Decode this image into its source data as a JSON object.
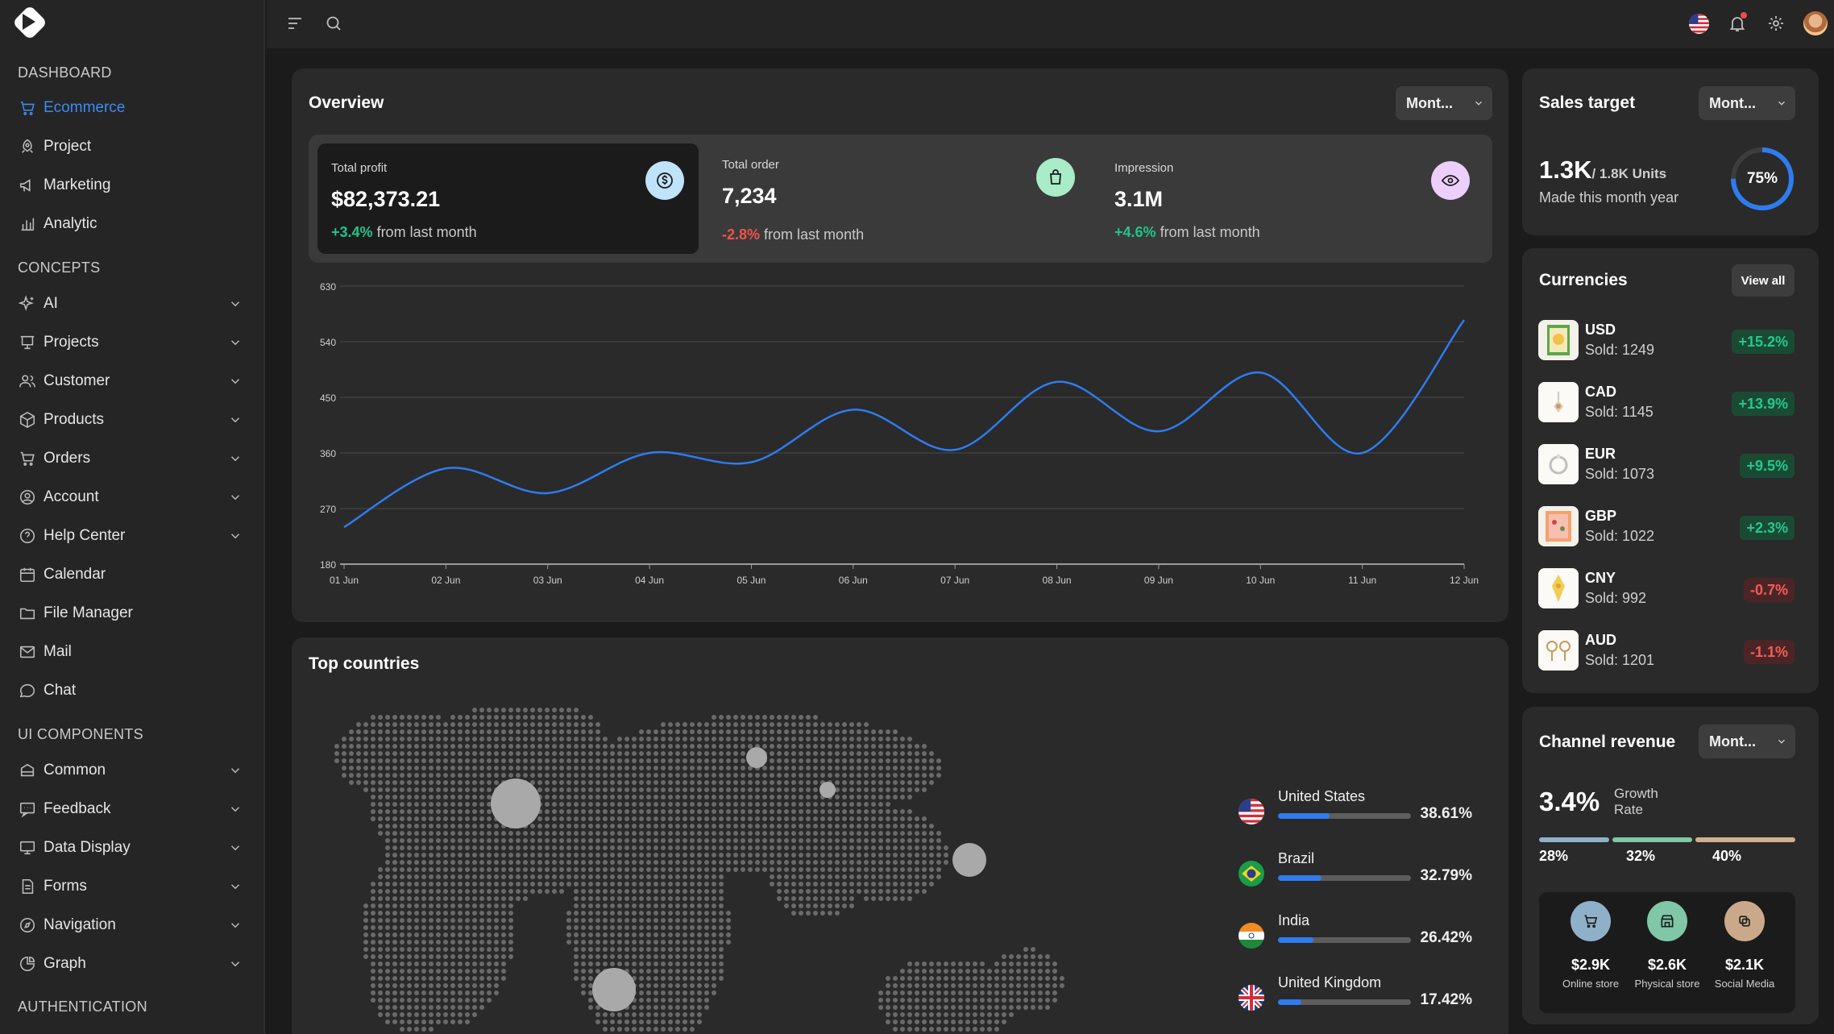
{
  "sidebar": {
    "sections": [
      "DASHBOARD",
      "CONCEPTS",
      "UI COMPONENTS",
      "AUTHENTICATION"
    ],
    "dashboard_items": [
      {
        "label": "Ecommerce",
        "icon": "cart-icon",
        "active": true
      },
      {
        "label": "Project",
        "icon": "rocket-icon"
      },
      {
        "label": "Marketing",
        "icon": "megaphone-icon"
      },
      {
        "label": "Analytic",
        "icon": "bar-chart-icon"
      }
    ],
    "concept_items": [
      {
        "label": "AI",
        "icon": "sparkle-icon"
      },
      {
        "label": "Projects",
        "icon": "presentation-icon"
      },
      {
        "label": "Customer",
        "icon": "users-icon"
      },
      {
        "label": "Products",
        "icon": "box-icon"
      },
      {
        "label": "Orders",
        "icon": "cart-icon"
      },
      {
        "label": "Account",
        "icon": "user-circle-icon"
      },
      {
        "label": "Help Center",
        "icon": "help-icon"
      },
      {
        "label": "Calendar",
        "icon": "calendar-icon"
      },
      {
        "label": "File Manager",
        "icon": "folder-icon"
      },
      {
        "label": "Mail",
        "icon": "mail-icon"
      },
      {
        "label": "Chat",
        "icon": "chat-icon"
      }
    ],
    "component_items": [
      {
        "label": "Common",
        "icon": "layers-icon"
      },
      {
        "label": "Feedback",
        "icon": "message-icon"
      },
      {
        "label": "Data Display",
        "icon": "monitor-icon"
      },
      {
        "label": "Forms",
        "icon": "file-icon"
      },
      {
        "label": "Navigation",
        "icon": "compass-icon"
      },
      {
        "label": "Graph",
        "icon": "pie-icon"
      }
    ]
  },
  "overview": {
    "title": "Overview",
    "dropdown": "Mont...",
    "kpis": [
      {
        "label": "Total profit",
        "value": "$82,373.21",
        "delta": "+3.4%",
        "delta_text": "from last month",
        "trend": "up",
        "icon": "dollar-icon",
        "icon_color": "#bfe3fb"
      },
      {
        "label": "Total order",
        "value": "7,234",
        "delta": "-2.8%",
        "delta_text": "from last month",
        "trend": "down",
        "icon": "shopping-bag-icon",
        "icon_color": "#a8ecc9"
      },
      {
        "label": "Impression",
        "value": "3.1M",
        "delta": "+4.6%",
        "delta_text": "from last month",
        "trend": "up",
        "icon": "eye-icon",
        "icon_color": "#eccffb"
      }
    ]
  },
  "chart_data": {
    "type": "line",
    "x": [
      "01 Jun",
      "02 Jun",
      "03 Jun",
      "04 Jun",
      "05 Jun",
      "06 Jun",
      "07 Jun",
      "08 Jun",
      "09 Jun",
      "10 Jun",
      "11 Jun",
      "12 Jun"
    ],
    "series": [
      {
        "values": [
          240,
          335,
          295,
          360,
          345,
          430,
          365,
          475,
          395,
          490,
          360,
          575
        ],
        "color": "#2e7cf0"
      }
    ],
    "yticks": [
      180,
      270,
      360,
      450,
      540,
      630
    ],
    "ylim": [
      180,
      630
    ],
    "grid": true
  },
  "countries": {
    "title": "Top countries",
    "items": [
      {
        "name": "United States",
        "pct": "38.61%",
        "value": 38.61
      },
      {
        "name": "Brazil",
        "pct": "32.79%",
        "value": 32.79
      },
      {
        "name": "India",
        "pct": "26.42%",
        "value": 26.42
      },
      {
        "name": "United Kingdom",
        "pct": "17.42%",
        "value": 17.42
      }
    ]
  },
  "sales_target": {
    "title": "Sales target",
    "dropdown": "Mont...",
    "value": "1.3K",
    "unit_text": "/ 1.8K Units",
    "subtitle": "Made this month year",
    "percent": "75%",
    "progress": 0.75
  },
  "currencies": {
    "title": "Currencies",
    "view_all": "View all",
    "items": [
      {
        "code": "USD",
        "sold": "Sold: 1249",
        "change": "+15.2%",
        "trend": "up"
      },
      {
        "code": "CAD",
        "sold": "Sold: 1145",
        "change": "+13.9%",
        "trend": "up"
      },
      {
        "code": "EUR",
        "sold": "Sold: 1073",
        "change": "+9.5%",
        "trend": "up"
      },
      {
        "code": "GBP",
        "sold": "Sold: 1022",
        "change": "+2.3%",
        "trend": "up"
      },
      {
        "code": "CNY",
        "sold": "Sold: 992",
        "change": "-0.7%",
        "trend": "down"
      },
      {
        "code": "AUD",
        "sold": "Sold: 1201",
        "change": "-1.1%",
        "trend": "down"
      }
    ]
  },
  "channel_revenue": {
    "title": "Channel revenue",
    "dropdown": "Mont...",
    "growth": "3.4%",
    "growth_label": "Growth Rate",
    "segments": [
      {
        "label": "28%",
        "color": "#8fb0c9",
        "share": 0.28
      },
      {
        "label": "32%",
        "color": "#7fc7a6",
        "share": 0.32
      },
      {
        "label": "40%",
        "color": "#d1b08f",
        "share": 0.4
      }
    ],
    "channels": [
      {
        "value": "$2.9K",
        "label": "Online store",
        "icon": "cart-icon",
        "color": "#8fb0c9"
      },
      {
        "value": "$2.6K",
        "label": "Physical store",
        "icon": "store-icon",
        "color": "#7fc7a6"
      },
      {
        "value": "$2.1K",
        "label": "Social Media",
        "icon": "share-icon",
        "color": "#c9a98a"
      }
    ]
  }
}
